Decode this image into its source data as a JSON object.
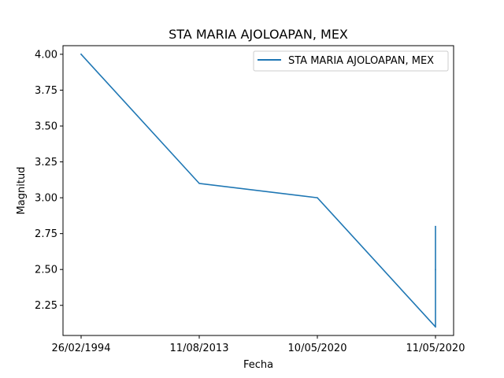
{
  "chart_data": {
    "type": "line",
    "title": "STA MARIA AJOLOAPAN, MEX",
    "xlabel": "Fecha",
    "ylabel": "Magnitud",
    "categories": [
      "26/02/1994",
      "11/08/2013",
      "10/05/2020",
      "11/05/2020"
    ],
    "series": [
      {
        "name": "STA MARIA AJOLOAPAN, MEX",
        "color": "#1f77b4",
        "points": [
          {
            "x": "26/02/1994",
            "y": 4.0
          },
          {
            "x": "11/08/2013",
            "y": 3.1
          },
          {
            "x": "10/05/2020",
            "y": 3.0
          },
          {
            "x": "11/05/2020",
            "y": 2.1
          },
          {
            "x": "11/05/2020",
            "y": 2.8
          },
          {
            "x": "11/05/2020",
            "y": 2.5
          }
        ]
      }
    ],
    "ylim": [
      2.04,
      4.06
    ],
    "yticks": [
      2.25,
      2.5,
      2.75,
      3.0,
      3.25,
      3.5,
      3.75,
      4.0
    ],
    "ytick_labels": [
      "2.25",
      "2.50",
      "2.75",
      "3.00",
      "3.25",
      "3.50",
      "3.75",
      "4.00"
    ],
    "grid": false,
    "legend_position": "top-right"
  }
}
